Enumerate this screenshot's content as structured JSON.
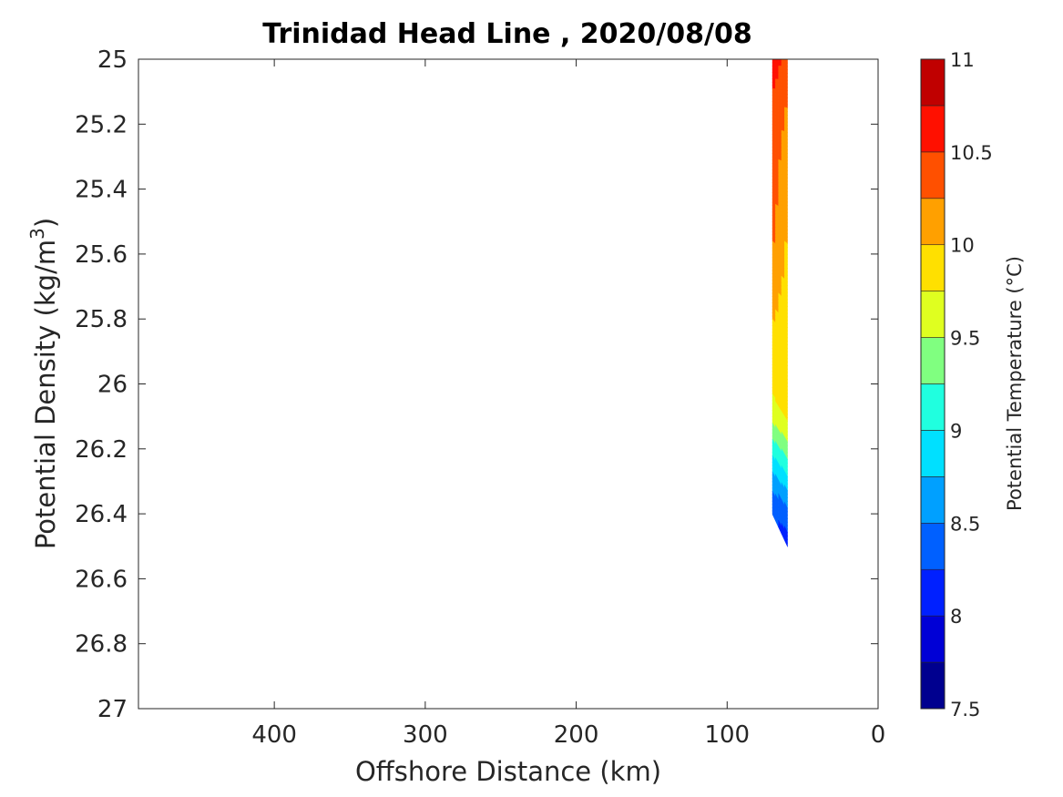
{
  "chart_data": {
    "type": "contour",
    "title": "Trinidad Head Line , 2020/08/08",
    "xlabel": "Offshore Distance (km)",
    "ylabel_main": "Potential Density (kg/m",
    "ylabel_sup": "3",
    "ylabel_close": ")",
    "xlim": [
      490,
      0
    ],
    "x_reversed": true,
    "ylim": [
      25,
      27
    ],
    "y_reversed": true,
    "x_ticks": [
      400,
      300,
      200,
      100,
      0
    ],
    "y_ticks": [
      25,
      25.2,
      25.4,
      25.6,
      25.8,
      26,
      26.2,
      26.4,
      26.6,
      26.8,
      27
    ],
    "y_tick_labels": [
      "25",
      "25.2",
      "25.4",
      "25.6",
      "25.8",
      "26",
      "26.2",
      "26.4",
      "26.6",
      "26.8",
      "27"
    ],
    "colorbar": {
      "label": "Potential Temperature (°C)",
      "range": [
        7.5,
        11
      ],
      "ticks": [
        7.5,
        8,
        8.5,
        9,
        9.5,
        10,
        10.5,
        11
      ],
      "tick_labels": [
        "7.5",
        "8",
        "8.5",
        "9",
        "9.5",
        "10",
        "10.5",
        "11"
      ],
      "levels": [
        7.5,
        7.75,
        8,
        8.25,
        8.5,
        8.75,
        9,
        9.25,
        9.5,
        9.75,
        10,
        10.25,
        10.5,
        10.75,
        11
      ],
      "colors": [
        "#00008f",
        "#0000d6",
        "#0020ff",
        "#0060ff",
        "#00a0ff",
        "#00e0ff",
        "#20ffdf",
        "#80ff80",
        "#dfff20",
        "#ffe000",
        "#ffa000",
        "#ff5000",
        "#ff1000",
        "#c00000"
      ]
    },
    "stations": [
      {
        "distance_km": 70,
        "temperature_profile": [
          {
            "density": 25.0,
            "temperature": 10.7
          },
          {
            "density": 25.1,
            "temperature": 10.5
          },
          {
            "density": 25.55,
            "temperature": 10.3
          },
          {
            "density": 25.7,
            "temperature": 10.1
          },
          {
            "density": 26.0,
            "temperature": 9.85
          },
          {
            "density": 26.12,
            "temperature": 9.5
          },
          {
            "density": 26.2,
            "temperature": 9.1
          },
          {
            "density": 26.3,
            "temperature": 8.6
          },
          {
            "density": 26.4,
            "temperature": 8.3
          }
        ]
      },
      {
        "distance_km": 60,
        "temperature_profile": [
          {
            "density": 25.0,
            "temperature": 10.35
          },
          {
            "density": 25.3,
            "temperature": 10.1
          },
          {
            "density": 25.6,
            "temperature": 9.95
          },
          {
            "density": 26.1,
            "temperature": 9.8
          },
          {
            "density": 26.2,
            "temperature": 9.4
          },
          {
            "density": 26.3,
            "temperature": 8.9
          },
          {
            "density": 26.4,
            "temperature": 8.4
          },
          {
            "density": 26.5,
            "temperature": 8.1
          }
        ]
      }
    ]
  }
}
